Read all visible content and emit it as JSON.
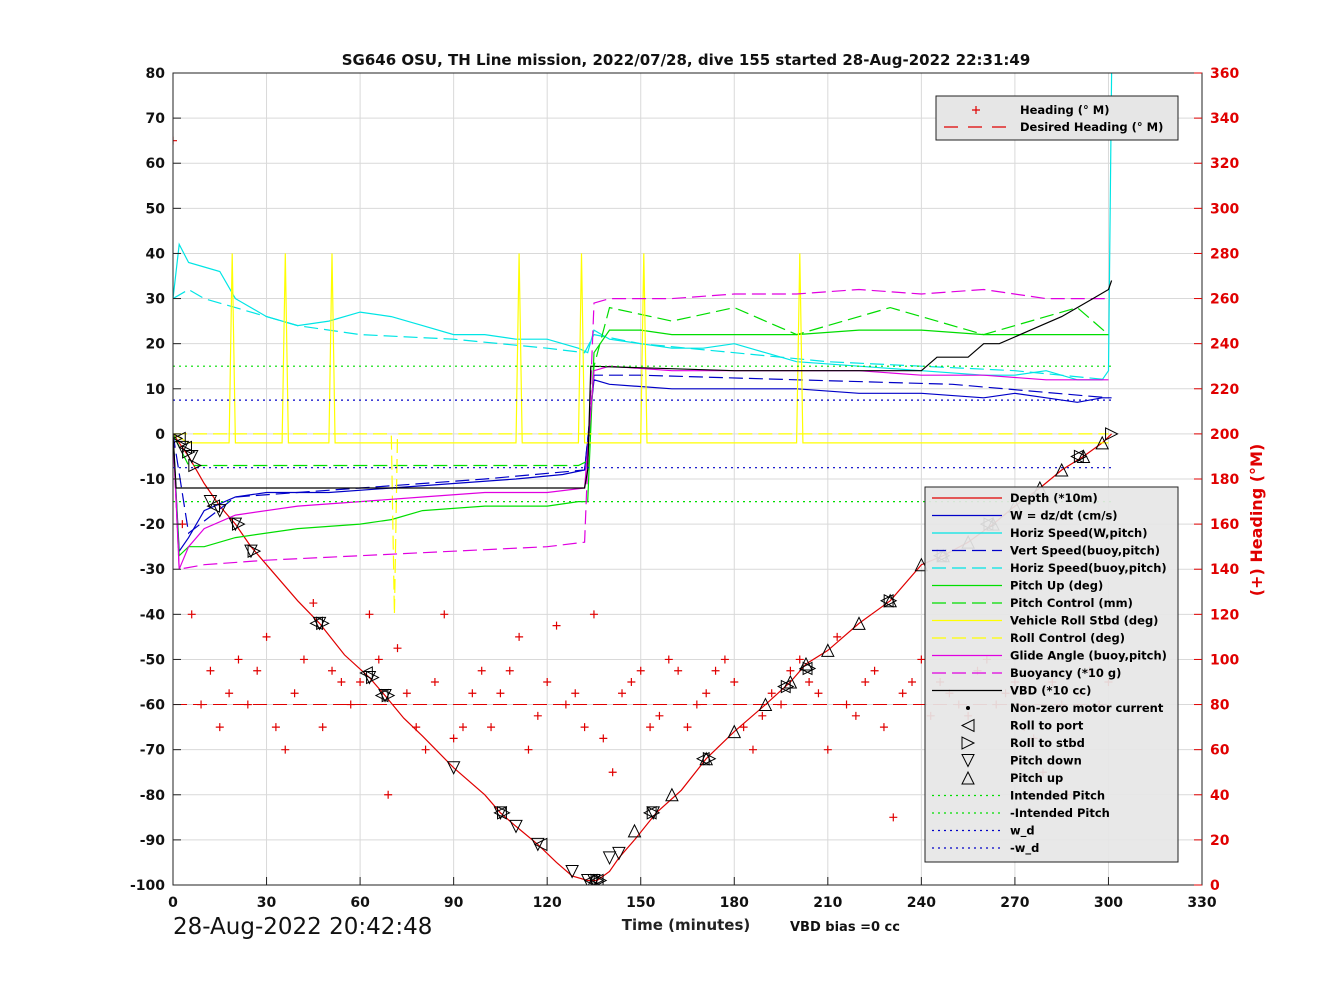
{
  "chart_data": {
    "type": "line",
    "title": "SG646 OSU, TH Line mission, 2022/07/28, dive 155 started 28-Aug-2022 22:31:49",
    "xlabel": "Time (minutes)",
    "ylabel": "",
    "y2label": "(+) Heading (°M)",
    "xlim": [
      0,
      330
    ],
    "ylim": [
      -100,
      80
    ],
    "y2lim": [
      0,
      360
    ],
    "xticks": [
      "0",
      "30",
      "60",
      "90",
      "120",
      "150",
      "180",
      "210",
      "240",
      "270",
      "300",
      "330"
    ],
    "yticks": [
      "80",
      "70",
      "60",
      "50",
      "40",
      "30",
      "20",
      "10",
      "0",
      "-10",
      "-20",
      "-30",
      "-40",
      "-50",
      "-60",
      "-70",
      "-80",
      "-90",
      "-100"
    ],
    "y2ticks": [
      "360",
      "340",
      "320",
      "300",
      "280",
      "260",
      "240",
      "220",
      "200",
      "180",
      "160",
      "140",
      "120",
      "100",
      "80",
      "60",
      "40",
      "20",
      "0"
    ],
    "grid": true,
    "legend_top": {
      "placement": "top-right",
      "entries": [
        {
          "label": "Heading (° M)",
          "color": "#e00000",
          "style": "plus"
        },
        {
          "label": "Desired Heading (° M)",
          "color": "#e00000",
          "style": "dashed"
        }
      ]
    },
    "legend_main": {
      "placement": "right",
      "entries": [
        {
          "label": "Depth (*10m)",
          "color": "#e00000",
          "style": "solid"
        },
        {
          "label": "W = dz/dt (cm/s)",
          "color": "#0000c8",
          "style": "solid"
        },
        {
          "label": "Horiz Speed(W,pitch)",
          "color": "#00e5e5",
          "style": "solid"
        },
        {
          "label": "Vert Speed(buoy,pitch)",
          "color": "#0000c8",
          "style": "dashed"
        },
        {
          "label": "Horiz Speed(buoy,pitch)",
          "color": "#00e5e5",
          "style": "dashed"
        },
        {
          "label": "Pitch Up (deg)",
          "color": "#00dd00",
          "style": "solid"
        },
        {
          "label": "Pitch Control (mm)",
          "color": "#00dd00",
          "style": "dashed"
        },
        {
          "label": "Vehicle Roll Stbd (deg)",
          "color": "#ffff00",
          "style": "solid"
        },
        {
          "label": "Roll Control (deg)",
          "color": "#ffff00",
          "style": "dashed"
        },
        {
          "label": "Glide Angle (buoy,pitch)",
          "color": "#e000e0",
          "style": "solid"
        },
        {
          "label": "Buoyancy (*10 g)",
          "color": "#e000e0",
          "style": "dashed"
        },
        {
          "label": "VBD (*10 cc)",
          "color": "#000000",
          "style": "solid"
        },
        {
          "label": "Non-zero motor current",
          "color": "#000000",
          "style": "dot"
        },
        {
          "label": "Roll to port",
          "color": "#000000",
          "style": "tri-left"
        },
        {
          "label": "Roll to stbd",
          "color": "#000000",
          "style": "tri-right"
        },
        {
          "label": "Pitch down",
          "color": "#000000",
          "style": "tri-down"
        },
        {
          "label": "Pitch up",
          "color": "#000000",
          "style": "tri-up"
        },
        {
          "label": "Intended Pitch",
          "color": "#00dd00",
          "style": "dotted"
        },
        {
          "label": "-Intended Pitch",
          "color": "#00dd00",
          "style": "dotted"
        },
        {
          "label": "w_d",
          "color": "#0000c8",
          "style": "dotted"
        },
        {
          "label": "-w_d",
          "color": "#0000c8",
          "style": "dotted"
        }
      ]
    },
    "series": [
      {
        "name": "Depth (*10m)",
        "color": "#e00000",
        "style": "solid",
        "x": [
          0,
          2,
          5,
          10,
          15,
          20,
          25,
          30,
          40,
          47,
          55,
          63,
          68,
          74,
          80,
          90,
          100,
          105,
          110,
          117,
          123,
          128,
          133,
          136,
          140,
          143,
          148,
          155,
          163,
          171,
          180,
          190,
          198,
          203,
          210,
          220,
          230,
          240,
          247,
          255,
          263,
          270,
          278,
          285,
          292,
          298,
          301
        ],
        "y": [
          0,
          -2,
          -5,
          -11,
          -16,
          -20,
          -25,
          -29,
          -37,
          -42,
          -49,
          -54,
          -58,
          -63,
          -67,
          -74,
          -80,
          -84,
          -87,
          -91,
          -95,
          -98,
          -99,
          -99,
          -97,
          -94,
          -90,
          -84,
          -79,
          -72,
          -66,
          -60,
          -55,
          -51,
          -48,
          -42,
          -37,
          -29,
          -27,
          -24,
          -20,
          -16,
          -12,
          -8,
          -5,
          -2,
          0
        ]
      },
      {
        "name": "W = dz/dt (cm/s)",
        "color": "#0000c8",
        "style": "solid",
        "x": [
          0,
          2,
          5,
          10,
          20,
          30,
          50,
          70,
          90,
          110,
          125,
          132,
          135,
          140,
          160,
          180,
          200,
          220,
          240,
          260,
          270,
          280,
          290,
          298,
          301
        ],
        "y": [
          0,
          -26,
          -23,
          -17,
          -14,
          -13,
          -13,
          -12,
          -11,
          -10,
          -9,
          -8,
          12,
          11,
          10,
          10,
          10,
          9,
          9,
          8,
          9,
          8,
          7,
          8,
          8
        ]
      },
      {
        "name": "Horiz Speed(W,pitch)",
        "color": "#00e5e5",
        "style": "solid",
        "x": [
          0,
          2,
          5,
          10,
          15,
          20,
          30,
          40,
          50,
          60,
          70,
          80,
          90,
          100,
          110,
          120,
          130,
          133,
          135,
          140,
          150,
          160,
          170,
          180,
          190,
          200,
          220,
          240,
          260,
          270,
          280,
          290,
          298,
          300,
          301
        ],
        "y": [
          30,
          42,
          38,
          37,
          36,
          30,
          26,
          24,
          25,
          27,
          26,
          24,
          22,
          22,
          21,
          21,
          19,
          18,
          23,
          21,
          20,
          19,
          19,
          20,
          18,
          16,
          15,
          14,
          13,
          13,
          14,
          12,
          12,
          14,
          80
        ]
      },
      {
        "name": "Vert Speed(buoy,pitch)",
        "color": "#0000c8",
        "style": "dashed",
        "x": [
          0,
          5,
          20,
          60,
          100,
          132,
          135,
          150,
          200,
          250,
          300
        ],
        "y": [
          0,
          -22,
          -14,
          -12,
          -10,
          -8,
          13,
          13,
          12,
          11,
          8
        ]
      },
      {
        "name": "Horiz Speed(buoy,pitch)",
        "color": "#00e5e5",
        "style": "dashed",
        "x": [
          0,
          5,
          10,
          20,
          40,
          60,
          90,
          120,
          132,
          135,
          150,
          180,
          210,
          240,
          270,
          300
        ],
        "y": [
          30,
          32,
          30,
          28,
          24,
          22,
          21,
          19,
          18,
          22,
          20,
          18,
          16,
          15,
          14,
          12
        ]
      },
      {
        "name": "Pitch Up (deg)",
        "color": "#00dd00",
        "style": "solid",
        "x": [
          0,
          2,
          5,
          10,
          20,
          40,
          60,
          70,
          80,
          100,
          120,
          130,
          133,
          135,
          140,
          150,
          160,
          180,
          200,
          220,
          240,
          260,
          280,
          300
        ],
        "y": [
          0,
          -27,
          -25,
          -25,
          -23,
          -21,
          -20,
          -19,
          -17,
          -16,
          -16,
          -15,
          -15,
          18,
          23,
          23,
          22,
          22,
          22,
          23,
          23,
          22,
          22,
          22
        ]
      },
      {
        "name": "Pitch Control (mm)",
        "color": "#00dd00",
        "style": "dashed",
        "x": [
          0,
          5,
          130,
          133,
          135,
          140,
          160,
          180,
          200,
          230,
          260,
          290,
          300
        ],
        "y": [
          0,
          -7,
          -7,
          -6,
          15,
          28,
          25,
          28,
          22,
          28,
          22,
          28,
          22
        ]
      },
      {
        "name": "Vehicle Roll Stbd (deg)",
        "color": "#ffff00",
        "style": "solid",
        "x": [
          0,
          5,
          18,
          19,
          20,
          35,
          36,
          37,
          50,
          51,
          52,
          110,
          111,
          112,
          130,
          131,
          132,
          150,
          151,
          152,
          200,
          201,
          202,
          270,
          280,
          300
        ],
        "y": [
          0,
          -2,
          -2,
          40,
          -2,
          -2,
          40,
          -2,
          -2,
          40,
          -2,
          -2,
          40,
          -2,
          -2,
          40,
          -2,
          -2,
          40,
          -2,
          -2,
          40,
          -2,
          -2,
          -2,
          -2
        ]
      },
      {
        "name": "Roll Control (deg)",
        "color": "#ffff00",
        "style": "dashed",
        "x": [
          0,
          60,
          70,
          71,
          72,
          130,
          135,
          140,
          200,
          300
        ],
        "y": [
          0,
          0,
          0,
          -40,
          0,
          0,
          0,
          0,
          0,
          0
        ]
      },
      {
        "name": "Glide Angle (buoy,pitch)",
        "color": "#e000e0",
        "style": "solid",
        "x": [
          0,
          2,
          5,
          10,
          20,
          40,
          60,
          80,
          100,
          120,
          132,
          135,
          140,
          160,
          180,
          200,
          220,
          240,
          260,
          280,
          300
        ],
        "y": [
          0,
          -30,
          -25,
          -21,
          -18,
          -16,
          -15,
          -14,
          -13,
          -13,
          -12,
          14,
          15,
          14,
          14,
          14,
          14,
          13,
          13,
          12,
          12
        ]
      },
      {
        "name": "Buoyancy (*10 g)",
        "color": "#e000e0",
        "style": "dashed",
        "x": [
          0,
          2,
          10,
          30,
          60,
          90,
          120,
          132,
          135,
          140,
          160,
          180,
          200,
          220,
          240,
          260,
          280,
          300
        ],
        "y": [
          0,
          -30,
          -29,
          -28,
          -27,
          -26,
          -25,
          -24,
          29,
          30,
          30,
          31,
          31,
          32,
          31,
          32,
          30,
          30
        ]
      },
      {
        "name": "VBD (*10 cc)",
        "color": "#000000",
        "style": "solid",
        "x": [
          0,
          1,
          2,
          132,
          133,
          134,
          180,
          240,
          245,
          255,
          260,
          265,
          275,
          285,
          290,
          295,
          300,
          301
        ],
        "y": [
          0,
          -12,
          -12,
          -12,
          -8,
          15,
          14,
          14,
          17,
          17,
          20,
          20,
          23,
          26,
          28,
          30,
          32,
          34
        ]
      },
      {
        "name": "Intended Pitch",
        "color": "#00dd00",
        "style": "dotted",
        "x": [
          0,
          301
        ],
        "y": [
          15,
          15
        ]
      },
      {
        "name": "-Intended Pitch",
        "color": "#00dd00",
        "style": "dotted",
        "x": [
          0,
          301
        ],
        "y": [
          -15,
          -15
        ]
      },
      {
        "name": "w_d",
        "color": "#0000c8",
        "style": "dotted",
        "x": [
          0,
          301
        ],
        "y": [
          7.5,
          7.5
        ]
      },
      {
        "name": "-w_d",
        "color": "#0000c8",
        "style": "dotted",
        "x": [
          0,
          301
        ],
        "y": [
          -7.5,
          -7.5
        ]
      }
    ],
    "desired_heading": {
      "name": "Desired Heading (° M)",
      "y2": 80,
      "x": [
        0,
        301
      ]
    },
    "heading": {
      "name": "Heading (° M)",
      "x": [
        0,
        3,
        6,
        9,
        12,
        15,
        18,
        21,
        24,
        27,
        30,
        33,
        36,
        39,
        42,
        45,
        48,
        51,
        54,
        57,
        60,
        63,
        66,
        69,
        72,
        75,
        78,
        81,
        84,
        87,
        90,
        93,
        96,
        99,
        102,
        105,
        108,
        111,
        114,
        117,
        120,
        123,
        126,
        129,
        132,
        135,
        138,
        141,
        144,
        147,
        150,
        153,
        156,
        159,
        162,
        165,
        168,
        171,
        174,
        177,
        180,
        183,
        186,
        189,
        192,
        195,
        198,
        201,
        204,
        207,
        210,
        213,
        216,
        219,
        222,
        225,
        228,
        231,
        234,
        237,
        240,
        243,
        246,
        249,
        252,
        255,
        258,
        261,
        264,
        267,
        270,
        273,
        276,
        279,
        282,
        285,
        288,
        291,
        294,
        297,
        300
      ],
      "y2": [
        330,
        160,
        120,
        80,
        95,
        70,
        85,
        100,
        80,
        95,
        110,
        70,
        60,
        85,
        100,
        125,
        70,
        95,
        90,
        80,
        90,
        120,
        100,
        40,
        105,
        85,
        70,
        60,
        90,
        120,
        65,
        70,
        85,
        95,
        70,
        85,
        95,
        110,
        60,
        75,
        90,
        115,
        80,
        85,
        70,
        120,
        65,
        50,
        85,
        90,
        95,
        70,
        75,
        100,
        95,
        70,
        80,
        85,
        95,
        100,
        90,
        70,
        60,
        75,
        85,
        80,
        95,
        100,
        90,
        85,
        60,
        110,
        80,
        75,
        90,
        95,
        70,
        30,
        85,
        90,
        100,
        75,
        90,
        85,
        80,
        75,
        95,
        100,
        80,
        85,
        90,
        70,
        65,
        50,
        90,
        80,
        40,
        85,
        95,
        80,
        90
      ]
    },
    "markers": {
      "pitch_down": {
        "label": "Pitch down",
        "x": [
          3,
          6,
          12,
          15,
          20,
          25,
          47,
          63,
          68,
          90,
          105,
          110,
          117,
          128,
          133,
          135,
          140,
          143,
          154
        ],
        "y": [
          -3,
          -5,
          -15,
          -17,
          -20,
          -26,
          -42,
          -54,
          -58,
          -74,
          -84,
          -87,
          -91,
          -97,
          -99,
          -99,
          -94,
          -93,
          -84
        ]
      },
      "pitch_up": {
        "label": "Pitch up",
        "x": [
          148,
          160,
          171,
          180,
          190,
          198,
          203,
          210,
          220,
          230,
          240,
          247,
          255,
          263,
          270,
          278,
          285,
          292,
          298
        ],
        "y": [
          -88,
          -80,
          -72,
          -66,
          -60,
          -55,
          -51,
          -48,
          -42,
          -37,
          -29,
          -27,
          -24,
          -20,
          -16,
          -12,
          -8,
          -5,
          -2
        ]
      },
      "roll_port": {
        "label": "Roll to port",
        "x": [
          2,
          4,
          13,
          46,
          62,
          67,
          105,
          118,
          134,
          136,
          153,
          170,
          196,
          203,
          229,
          246,
          261,
          290
        ],
        "y": [
          -1,
          -3,
          -16,
          -42,
          -53,
          -58,
          -84,
          -91,
          -99,
          -99,
          -84,
          -72,
          -56,
          -52,
          -37,
          -27,
          -20,
          -5
        ]
      },
      "roll_stbd": {
        "label": "Roll to stbd",
        "x": [
          1,
          5,
          7,
          21,
          26,
          48,
          64,
          69,
          106,
          136,
          137,
          154,
          172,
          197,
          204,
          230,
          247,
          262,
          291,
          301
        ],
        "y": [
          -1,
          -4,
          -7,
          -20,
          -26,
          -42,
          -54,
          -58,
          -84,
          -99,
          -99,
          -84,
          -72,
          -56,
          -52,
          -37,
          -27,
          -20,
          -5,
          0
        ]
      }
    }
  },
  "footer": {
    "date": "28-Aug-2022 20:42:48",
    "bias": "VBD bias =0 cc"
  }
}
